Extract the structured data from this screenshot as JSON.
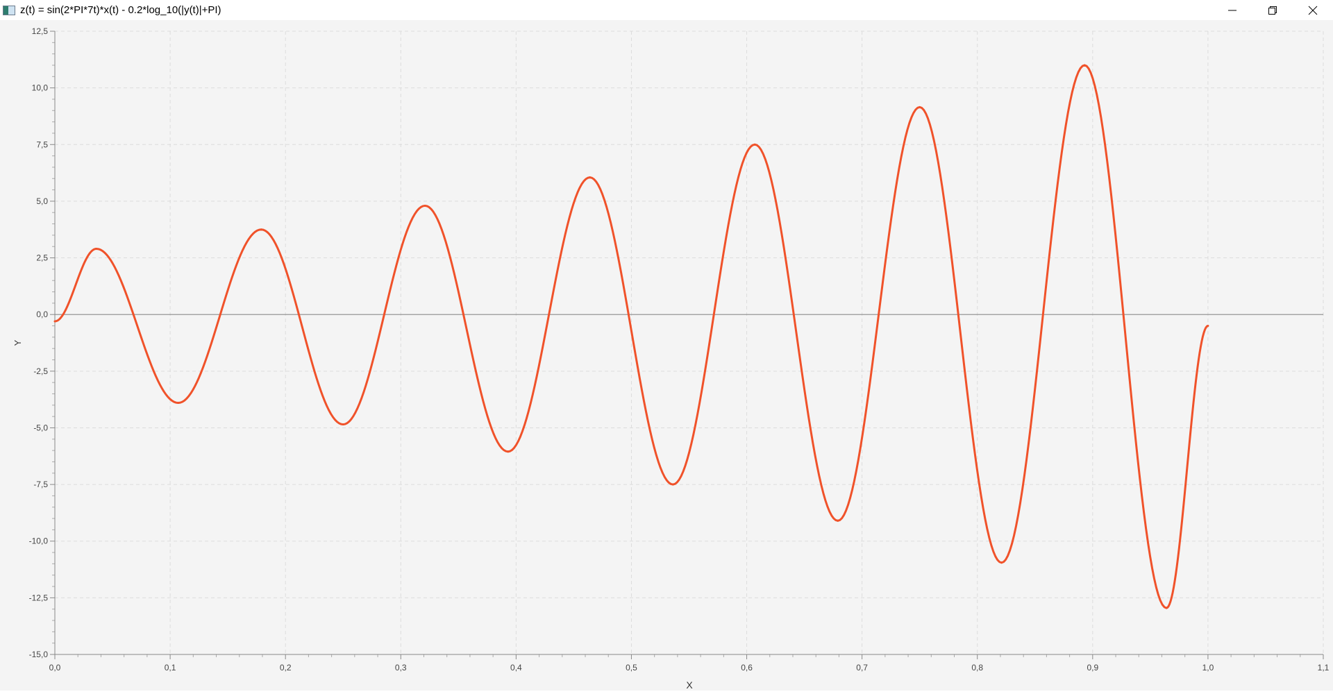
{
  "window": {
    "title": "z(t) = sin(2*PI*7t)*x(t) - 0.2*log_10(|y(t)|+PI)",
    "icons": [
      "app-icon",
      "minimize-icon",
      "restore-icon",
      "close-icon"
    ]
  },
  "chart_data": {
    "type": "line",
    "xlabel": "X",
    "ylabel": "Y",
    "xlim": [
      0.0,
      1.1
    ],
    "ylim": [
      -15.0,
      12.5
    ],
    "x_ticks": [
      "0,0",
      "0,1",
      "0,2",
      "0,3",
      "0,4",
      "0,5",
      "0,6",
      "0,7",
      "0,8",
      "0,9",
      "1,0",
      "1,1"
    ],
    "y_ticks": [
      "12,5",
      "10,0",
      "7,5",
      "5,0",
      "2,5",
      "0,0",
      "-2,5",
      "-5,0",
      "-7,5",
      "-10,0",
      "-12,5",
      "-15,0"
    ],
    "grid": true,
    "legend": "none",
    "line_color": "#f0522a",
    "series": [
      {
        "x": [
          0.0,
          0.036,
          0.107,
          0.179,
          0.25,
          0.321,
          0.393,
          0.464,
          0.536,
          0.607,
          0.679,
          0.75,
          0.821,
          0.893,
          0.964,
          1.0
        ],
        "y": [
          -0.3,
          2.9,
          -3.9,
          3.75,
          -4.85,
          4.8,
          -6.05,
          6.05,
          -7.5,
          7.5,
          -9.1,
          9.15,
          -10.95,
          11.0,
          -12.95,
          -0.5
        ]
      }
    ]
  }
}
